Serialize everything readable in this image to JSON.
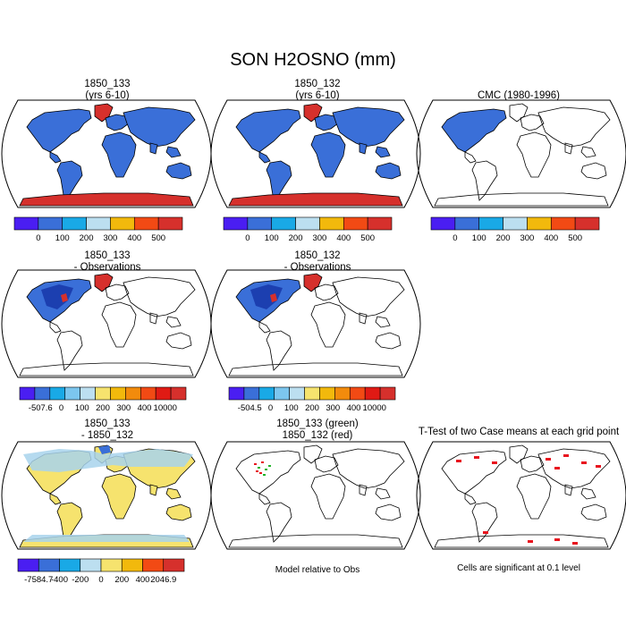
{
  "title": "SON H2OSNO (mm)",
  "colors": {
    "snow_blue": "#3a6fd8",
    "snow_red": "#d6302c",
    "diff_yellow": "#f6e36e",
    "diff_lightblue": "#a8d4ec",
    "sig_red": "#e8141e",
    "sig_green": "#20b428",
    "outline": "#000000"
  },
  "panels": [
    {
      "id": "p1",
      "title": "1850_133",
      "subtitle": "(yrs 6-10)"
    },
    {
      "id": "p2",
      "title": "1850_132",
      "subtitle": "(yrs 6-10)"
    },
    {
      "id": "p3",
      "title": "CMC (1980-1996)",
      "subtitle": ""
    },
    {
      "id": "p4",
      "title": "1850_133",
      "subtitle": "- Observations"
    },
    {
      "id": "p5",
      "title": "1850_132",
      "subtitle": "- Observations"
    },
    {
      "id": "p7",
      "title": "1850_133",
      "subtitle": "- 1850_132"
    },
    {
      "id": "p8",
      "title": "1850_133 (green)",
      "subtitle": "1850_132 (red)"
    },
    {
      "id": "p9",
      "title": "T-Test of two Case means at each grid point",
      "subtitle": ""
    }
  ],
  "colorbars": {
    "cb_abs": {
      "colors": [
        "#4a1ef2",
        "#3a6fd8",
        "#19a9e6",
        "#bcdff0",
        "#f2b90c",
        "#f24a14",
        "#d6302c"
      ],
      "labels": [
        "0",
        "100",
        "200",
        "300",
        "400",
        "500"
      ]
    },
    "cb_obs1": {
      "colors": [
        "#4a1ef2",
        "#3a6fd8",
        "#19a9e6",
        "#7cc6ee",
        "#bcdff0",
        "#f6e36e",
        "#f2b90c",
        "#f28b0c",
        "#f24a14",
        "#e01a14",
        "#d6302c"
      ],
      "labels": [
        "-507.6",
        "0",
        "100",
        "200",
        "300",
        "400",
        "10000"
      ]
    },
    "cb_obs2": {
      "colors": [
        "#4a1ef2",
        "#3a6fd8",
        "#19a9e6",
        "#7cc6ee",
        "#bcdff0",
        "#f6e36e",
        "#f2b90c",
        "#f28b0c",
        "#f24a14",
        "#e01a14",
        "#d6302c"
      ],
      "labels": [
        "-504.5",
        "0",
        "100",
        "200",
        "300",
        "400",
        "10000"
      ]
    },
    "cb_diff": {
      "colors": [
        "#4a1ef2",
        "#3a6fd8",
        "#19a9e6",
        "#bcdff0",
        "#f6e36e",
        "#f2b90c",
        "#f24a14",
        "#d6302c"
      ],
      "labels": [
        "-7584.7",
        "-400",
        "-200",
        "0",
        "200",
        "400",
        "2046.9"
      ]
    }
  },
  "notes": {
    "model_relative": "Model relative to Obs",
    "significance": "Cells are significant at 0.1 level"
  }
}
